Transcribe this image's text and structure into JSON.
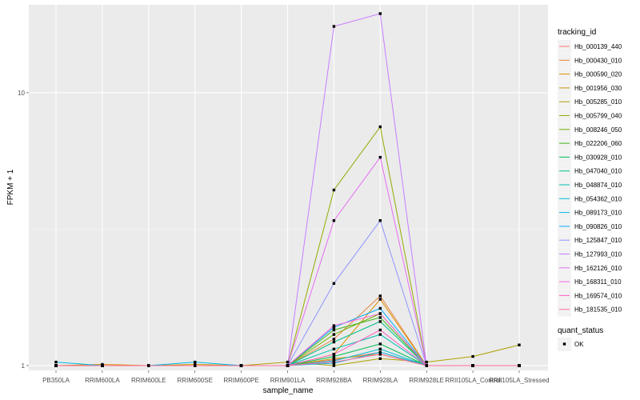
{
  "chart_data": {
    "type": "line",
    "xlabel": "sample_name",
    "ylabel": "FPKM + 1",
    "y_scale": "log10",
    "ylim": [
      0.96,
      21
    ],
    "y_ticks": [
      1,
      10
    ],
    "grid": true,
    "legend_placement": "right",
    "categories": [
      "PB350LA",
      "RRIM600LA",
      "RRIM600LE",
      "RRIM600SE",
      "RRIM600PE",
      "RRIM901LA",
      "RRIM928BA",
      "RRIM928LA",
      "RRIM928LE",
      "RRII105LA_Control",
      "RRII105LA_Stressed"
    ],
    "legend": {
      "color_title": "tracking_id",
      "shape_title": "quant_status",
      "shape_entries": [
        "OK"
      ]
    },
    "series": [
      {
        "name": "Hb_000139_440",
        "color": "#F8766D",
        "values": [
          1.0,
          1.0,
          1.0,
          1.0,
          1.0,
          1.0,
          1.05,
          1.12,
          1.0,
          1.0,
          1.0
        ]
      },
      {
        "name": "Hb_000430_010",
        "color": "#EC8239",
        "values": [
          1.0,
          1.0,
          1.0,
          1.0,
          1.0,
          1.0,
          1.25,
          1.8,
          1.0,
          1.0,
          1.0
        ]
      },
      {
        "name": "Hb_000590_020",
        "color": "#DB8E00",
        "values": [
          1.0,
          1.01,
          1.0,
          1.0,
          1.0,
          1.0,
          1.1,
          1.75,
          1.0,
          1.0,
          1.0
        ]
      },
      {
        "name": "Hb_001956_030",
        "color": "#C79800",
        "values": [
          1.0,
          1.0,
          1.0,
          1.01,
          1.0,
          1.0,
          1.06,
          1.1,
          1.0,
          1.0,
          1.0
        ]
      },
      {
        "name": "Hb_005285_010",
        "color": "#AFA100",
        "values": [
          1.0,
          1.0,
          1.0,
          1.0,
          1.0,
          1.03,
          1.0,
          1.06,
          1.03,
          1.08,
          1.19
        ]
      },
      {
        "name": "Hb_005799_040",
        "color": "#96A900",
        "values": [
          1.0,
          1.0,
          1.0,
          1.0,
          1.0,
          1.0,
          4.4,
          7.5,
          1.0,
          1.0,
          1.0
        ]
      },
      {
        "name": "Hb_008246_050",
        "color": "#72B000",
        "values": [
          1.0,
          1.0,
          1.0,
          1.0,
          1.0,
          1.0,
          1.3,
          1.55,
          1.0,
          1.0,
          1.0
        ]
      },
      {
        "name": "Hb_022206_060",
        "color": "#3FB618",
        "values": [
          1.0,
          1.0,
          1.0,
          1.0,
          1.0,
          1.0,
          1.35,
          1.5,
          1.0,
          1.0,
          1.0
        ]
      },
      {
        "name": "Hb_030928_010",
        "color": "#00BC54",
        "values": [
          1.0,
          1.0,
          1.0,
          1.0,
          1.0,
          1.0,
          1.08,
          1.2,
          1.0,
          1.0,
          1.0
        ]
      },
      {
        "name": "Hb_047040_010",
        "color": "#00C08B",
        "values": [
          1.0,
          1.0,
          1.0,
          1.0,
          1.0,
          1.0,
          1.22,
          1.45,
          1.0,
          1.0,
          1.0
        ]
      },
      {
        "name": "Hb_048874_010",
        "color": "#00C1B2",
        "values": [
          1.0,
          1.0,
          1.0,
          1.0,
          1.0,
          1.0,
          1.15,
          1.3,
          1.0,
          1.0,
          1.0
        ]
      },
      {
        "name": "Hb_054362_010",
        "color": "#00BFD3",
        "values": [
          1.0,
          1.0,
          1.0,
          1.0,
          1.0,
          1.0,
          1.04,
          1.15,
          1.0,
          1.0,
          1.0
        ]
      },
      {
        "name": "Hb_089173_010",
        "color": "#00B8E7",
        "values": [
          1.03,
          1.0,
          1.0,
          1.03,
          1.0,
          1.0,
          1.02,
          1.12,
          1.0,
          1.0,
          1.0
        ]
      },
      {
        "name": "Hb_090826_010",
        "color": "#00ADFA",
        "values": [
          1.0,
          1.0,
          1.0,
          1.0,
          1.0,
          1.0,
          1.38,
          1.62,
          1.0,
          1.0,
          1.0
        ]
      },
      {
        "name": "Hb_125847_010",
        "color": "#8E93FF",
        "values": [
          1.0,
          1.0,
          1.0,
          1.0,
          1.0,
          1.0,
          2.0,
          3.4,
          1.0,
          1.0,
          1.0
        ]
      },
      {
        "name": "Hb_127993_010",
        "color": "#C77CFF",
        "values": [
          1.0,
          1.0,
          1.0,
          1.0,
          1.0,
          1.0,
          17.5,
          19.5,
          1.0,
          1.0,
          1.0
        ]
      },
      {
        "name": "Hb_162126_010",
        "color": "#E66DF1",
        "values": [
          1.0,
          1.0,
          1.0,
          1.0,
          1.0,
          1.0,
          3.4,
          5.8,
          1.0,
          1.0,
          1.0
        ]
      },
      {
        "name": "Hb_168311_010",
        "color": "#F863DE",
        "values": [
          1.0,
          1.0,
          1.0,
          1.0,
          1.0,
          1.0,
          1.4,
          1.55,
          1.0,
          1.0,
          1.0
        ]
      },
      {
        "name": "Hb_169574_010",
        "color": "#FE61C3",
        "values": [
          1.0,
          1.0,
          1.0,
          1.0,
          1.0,
          1.0,
          1.1,
          1.35,
          1.0,
          1.0,
          1.0
        ]
      },
      {
        "name": "Hb_181535_010",
        "color": "#FE6C9E",
        "values": [
          1.0,
          1.0,
          1.0,
          1.0,
          1.0,
          1.0,
          1.03,
          1.1,
          1.0,
          1.0,
          1.0
        ]
      }
    ]
  }
}
